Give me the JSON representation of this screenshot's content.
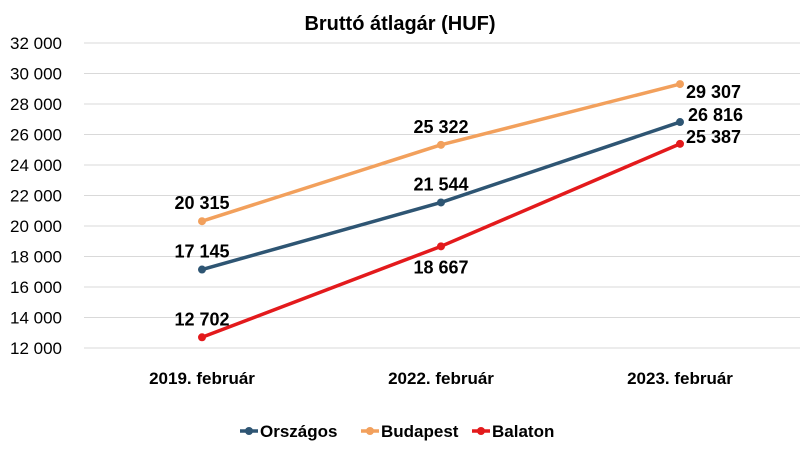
{
  "chart_data": {
    "type": "line",
    "title": "Bruttó átlagár (HUF)",
    "categories": [
      "2019. február",
      "2022. február",
      "2023. február"
    ],
    "ylim": [
      12000,
      32000
    ],
    "ytick_step": 2000,
    "ytick_labels": [
      "12 000",
      "14 000",
      "16 000",
      "18 000",
      "20 000",
      "22 000",
      "24 000",
      "26 000",
      "28 000",
      "30 000",
      "32 000"
    ],
    "grid": true,
    "legend_position": "bottom",
    "series": [
      {
        "name": "Országos",
        "color": "#2e5573",
        "values": [
          17145,
          21544,
          26816
        ],
        "labels": [
          "17 145",
          "21 544",
          "26 816"
        ]
      },
      {
        "name": "Budapest",
        "color": "#f2a05c",
        "values": [
          20315,
          25322,
          29307
        ],
        "labels": [
          "20 315",
          "25 322",
          "29 307"
        ]
      },
      {
        "name": "Balaton",
        "color": "#e31a1c",
        "values": [
          12702,
          18667,
          25387
        ],
        "labels": [
          "12 702",
          "18 667",
          "25 387"
        ]
      }
    ]
  }
}
